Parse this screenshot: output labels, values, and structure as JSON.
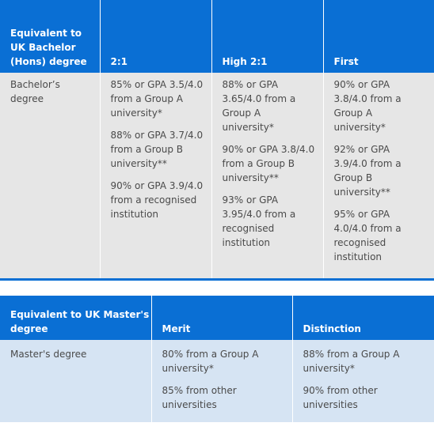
{
  "bachelor_table": {
    "headers": [
      "Equivalent to UK Bachelor (Hons) degree",
      "2:1",
      "High 2:1",
      "First"
    ],
    "row_label": "Bachelor’s degree",
    "cols": [
      [
        "85% or GPA 3.5/4.0 from a Group A university*",
        "88% or GPA 3.7/4.0 from a Group B university**",
        "90% or GPA 3.9/4.0 from a recognised institution"
      ],
      [
        "88% or GPA 3.65/4.0 from a Group A university*",
        "90% or GPA 3.8/4.0 from a Group B university**",
        "93% or GPA 3.95/4.0 from a recognised institution"
      ],
      [
        "90% or GPA 3.8/4.0 from a Group A university*",
        "92% or GPA 3.9/4.0 from a Group B university**",
        "95% or GPA 4.0/4.0 from a recognised institution"
      ]
    ]
  },
  "master_table": {
    "headers": [
      "Equivalent to UK Master's degree",
      "Merit",
      "Distinction"
    ],
    "row_label": "Master's degree",
    "cols": [
      [
        "80% from a Group A university*",
        "85% from other universities"
      ],
      [
        "88% from a Group A university*",
        "90% from other universities"
      ]
    ]
  }
}
